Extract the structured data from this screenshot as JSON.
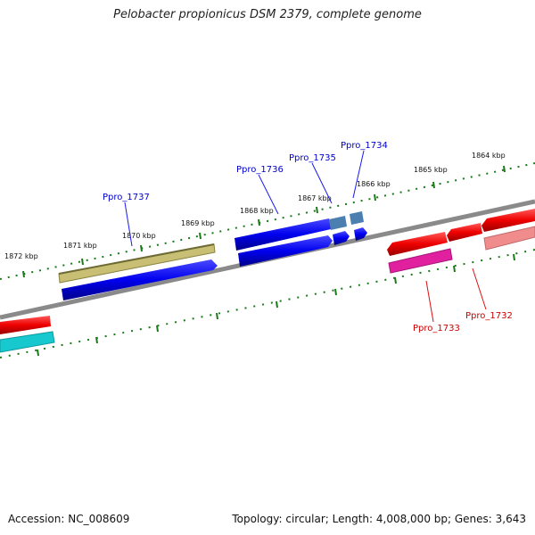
{
  "title": "Pelobacter propionicus DSM 2379, complete genome",
  "accession": "Accession: NC_008609",
  "summary": "Topology: circular; Length: 4,008,000 bp; Genes: 3,643",
  "colors": {
    "forward": "#0000ee",
    "reverse": "#dd0000",
    "backbone": "#808080",
    "ticks": "#1a7a1a"
  },
  "scale_labels": [
    "1864 kbp",
    "1865 kbp",
    "1866 kbp",
    "1867 kbp",
    "1868 kbp",
    "1869 kbp",
    "1870 kbp",
    "1871 kbp",
    "1872 kbp"
  ],
  "gene_labels": [
    "Ppro_1737",
    "Ppro_1736",
    "Ppro_1735",
    "Ppro_1734",
    "Ppro_1733",
    "Ppro_1732"
  ]
}
